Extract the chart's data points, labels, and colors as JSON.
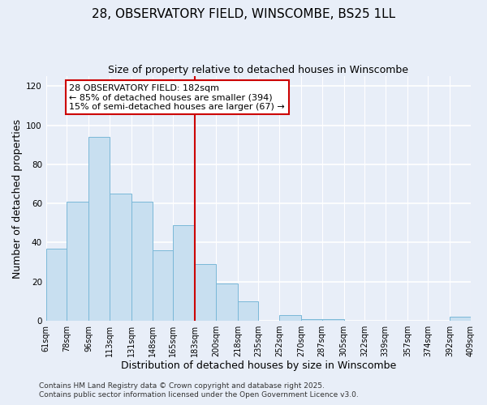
{
  "title": "28, OBSERVATORY FIELD, WINSCOMBE, BS25 1LL",
  "subtitle": "Size of property relative to detached houses in Winscombe",
  "xlabel": "Distribution of detached houses by size in Winscombe",
  "ylabel": "Number of detached properties",
  "bin_edges": [
    61,
    78,
    96,
    113,
    131,
    148,
    165,
    183,
    200,
    218,
    235,
    252,
    270,
    287,
    305,
    322,
    339,
    357,
    374,
    392,
    409
  ],
  "bar_heights": [
    37,
    61,
    94,
    65,
    61,
    36,
    49,
    29,
    19,
    10,
    0,
    3,
    1,
    1,
    0,
    0,
    0,
    0,
    0,
    2
  ],
  "bar_color": "#c8dff0",
  "bar_edgecolor": "#7ab8d8",
  "vline_x": 183,
  "vline_color": "#cc0000",
  "annotation_line1": "28 OBSERVATORY FIELD: 182sqm",
  "annotation_line2": "← 85% of detached houses are smaller (394)",
  "annotation_line3": "15% of semi-detached houses are larger (67) →",
  "annotation_box_edgecolor": "#cc0000",
  "annotation_box_facecolor": "#ffffff",
  "ylim": [
    0,
    125
  ],
  "yticks": [
    0,
    20,
    40,
    60,
    80,
    100,
    120
  ],
  "tick_labels": [
    "61sqm",
    "78sqm",
    "96sqm",
    "113sqm",
    "131sqm",
    "148sqm",
    "165sqm",
    "183sqm",
    "200sqm",
    "218sqm",
    "235sqm",
    "252sqm",
    "270sqm",
    "287sqm",
    "305sqm",
    "322sqm",
    "339sqm",
    "357sqm",
    "374sqm",
    "392sqm",
    "409sqm"
  ],
  "footer1": "Contains HM Land Registry data © Crown copyright and database right 2025.",
  "footer2": "Contains public sector information licensed under the Open Government Licence v3.0.",
  "bg_color": "#e8eef8",
  "plot_bg_color": "#e8eef8",
  "grid_color": "#ffffff",
  "title_fontsize": 11,
  "subtitle_fontsize": 9,
  "axis_label_fontsize": 9,
  "tick_fontsize": 7,
  "annotation_fontsize": 8,
  "footer_fontsize": 6.5
}
